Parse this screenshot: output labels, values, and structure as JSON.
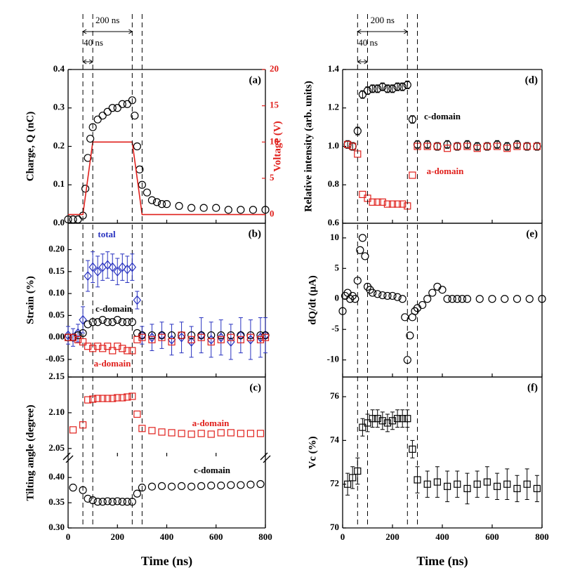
{
  "chart_data": [
    {
      "type": "scatter",
      "label": "(a)",
      "ylabel": "Charge, Q (nC)",
      "y2label": "Voltage (V)",
      "x": [
        0,
        20,
        40,
        60,
        70,
        80,
        90,
        100,
        120,
        140,
        160,
        180,
        200,
        220,
        240,
        260,
        270,
        280,
        290,
        300,
        320,
        340,
        360,
        380,
        400,
        450,
        500,
        550,
        600,
        650,
        700,
        750,
        800
      ],
      "xlim": [
        0,
        800
      ],
      "xticks": [
        0,
        200,
        400,
        600,
        800
      ],
      "ylim": [
        0,
        0.4
      ],
      "yticks": [
        {
          "value": 0,
          "label": "0.0"
        },
        0.1,
        0.2,
        0.3,
        0.4
      ],
      "y2lim": [
        -1.2,
        20
      ],
      "y2ticks": [
        0,
        5,
        10,
        15,
        20
      ],
      "series": [
        {
          "color": "#000000",
          "marker": "circle",
          "values": [
            0.01,
            0.01,
            0.01,
            0.02,
            0.09,
            0.17,
            0.22,
            0.25,
            0.27,
            0.28,
            0.29,
            0.3,
            0.3,
            0.31,
            0.31,
            0.32,
            0.28,
            0.2,
            0.14,
            0.1,
            0.08,
            0.06,
            0.055,
            0.05,
            0.05,
            0.045,
            0.04,
            0.04,
            0.04,
            0.035,
            0.035,
            0.035,
            0.035
          ]
        },
        {
          "color": "#e0201c",
          "mode": "line",
          "axis": "y2",
          "x": [
            0,
            60,
            100,
            260,
            300,
            800
          ],
          "values": [
            0,
            0,
            10,
            10,
            0,
            0
          ]
        }
      ],
      "markers": [
        60,
        100,
        260,
        300
      ],
      "annotations": [
        {
          "text": "200 ns",
          "from": 60,
          "to": 260
        },
        {
          "text": "40 ns",
          "from": 60,
          "to": 100
        }
      ]
    },
    {
      "type": "scatter",
      "label": "(b)",
      "ylabel": "Strain (%)",
      "x": [
        0,
        20,
        40,
        60,
        80,
        100,
        120,
        140,
        160,
        180,
        200,
        220,
        240,
        260,
        280,
        300,
        340,
        380,
        420,
        460,
        500,
        540,
        580,
        620,
        660,
        700,
        740,
        780,
        800
      ],
      "xlim": [
        0,
        800
      ],
      "xticks": [
        0,
        200,
        400,
        600,
        800
      ],
      "ylim": [
        -0.09,
        0.26
      ],
      "yticks": [
        -0.05,
        {
          "value": 0,
          "label": "0.00"
        },
        0.05,
        {
          "value": 0.1,
          "label": "0.10"
        },
        0.15,
        {
          "value": 0.2,
          "label": "0.20"
        }
      ],
      "series": [
        {
          "name": "total",
          "color": "#2832c0",
          "marker": "diamond",
          "values": [
            0.005,
            0,
            0.01,
            0.04,
            0.14,
            0.16,
            0.15,
            0.16,
            0.165,
            0.16,
            0.15,
            0.16,
            0.155,
            0.16,
            0.085,
            0.005,
            0,
            0.005,
            -0.005,
            0,
            -0.01,
            0.005,
            -0.005,
            0,
            -0.01,
            0.005,
            -0.005,
            0,
            0.005
          ],
          "errors": [
            0.02,
            0.02,
            0.02,
            0.03,
            0.035,
            0.035,
            0.035,
            0.03,
            0.03,
            0.03,
            0.03,
            0.03,
            0.03,
            0.03,
            0.02,
            0.02,
            0.03,
            0.03,
            0.035,
            0.035,
            0.035,
            0.04,
            0.04,
            0.04,
            0.04,
            0.04,
            0.045,
            0.045,
            0.04
          ]
        },
        {
          "name": "c-domain",
          "color": "#000000",
          "marker": "circle",
          "values": [
            0,
            0,
            0.005,
            0.01,
            0.03,
            0.035,
            0.035,
            0.04,
            0.035,
            0.035,
            0.04,
            0.035,
            0.035,
            0.035,
            0.01,
            0.005,
            0.005,
            0.005,
            0.005,
            0.005,
            0.005,
            0.005,
            0.005,
            0.005,
            0.005,
            0.005,
            0.005,
            0.005,
            0.005
          ]
        },
        {
          "name": "a-domain",
          "color": "#e0201c",
          "marker": "square",
          "values": [
            0,
            0,
            -0.005,
            -0.01,
            -0.02,
            -0.025,
            -0.02,
            -0.025,
            -0.02,
            -0.03,
            -0.02,
            -0.025,
            -0.03,
            -0.03,
            -0.005,
            0,
            -0.005,
            0,
            -0.01,
            0.005,
            -0.005,
            0,
            -0.01,
            -0.005,
            0,
            -0.005,
            0,
            -0.005,
            0
          ]
        }
      ]
    },
    {
      "type": "scatter",
      "label": "(c)",
      "ylabel": "Tilting angle (degree)",
      "x": [
        20,
        60,
        80,
        100,
        120,
        140,
        160,
        180,
        200,
        220,
        240,
        260,
        280,
        300,
        340,
        380,
        420,
        460,
        500,
        540,
        580,
        620,
        660,
        700,
        740,
        780
      ],
      "xlim": [
        0,
        800
      ],
      "xticks": [
        0,
        200,
        400,
        600,
        800
      ],
      "ylim": [
        2.039,
        2.15
      ],
      "yticks": [
        2.05,
        {
          "value": 2.1,
          "label": "2.10"
        },
        2.15
      ],
      "series": [
        {
          "name": "a-domain",
          "color": "#e0201c",
          "marker": "square",
          "values": [
            2.076,
            2.083,
            2.118,
            2.119,
            2.12,
            2.12,
            2.12,
            2.12,
            2.121,
            2.121,
            2.122,
            2.123,
            2.098,
            2.078,
            2.075,
            2.073,
            2.072,
            2.071,
            2.07,
            2.071,
            2.07,
            2.072,
            2.072,
            2.071,
            2.071,
            2.071
          ]
        }
      ]
    },
    {
      "type": "scatter",
      "x": [
        20,
        60,
        80,
        100,
        120,
        140,
        160,
        180,
        200,
        220,
        240,
        260,
        280,
        300,
        340,
        380,
        420,
        460,
        500,
        540,
        580,
        620,
        660,
        700,
        740,
        780
      ],
      "xlim": [
        0,
        800
      ],
      "xticks": [
        0,
        200,
        400,
        600,
        800
      ],
      "xlabel": "Time (ns)",
      "ylim": [
        0.3,
        0.442
      ],
      "yticks": [
        {
          "value": 0.3,
          "label": "0.30"
        },
        0.35,
        {
          "value": 0.4,
          "label": "0.40"
        }
      ],
      "series": [
        {
          "name": "c-domain",
          "color": "#000000",
          "marker": "circle",
          "values": [
            0.38,
            0.375,
            0.358,
            0.355,
            0.352,
            0.352,
            0.353,
            0.352,
            0.353,
            0.352,
            0.352,
            0.352,
            0.368,
            0.38,
            0.382,
            0.383,
            0.382,
            0.383,
            0.382,
            0.383,
            0.384,
            0.384,
            0.385,
            0.385,
            0.386,
            0.387
          ]
        }
      ]
    },
    {
      "type": "scatter",
      "label": "(d)",
      "ylabel": "Relative intensity (arb. units)",
      "x": [
        20,
        40,
        60,
        80,
        100,
        120,
        140,
        160,
        180,
        200,
        220,
        240,
        260,
        280,
        300,
        340,
        380,
        420,
        460,
        500,
        540,
        580,
        620,
        660,
        700,
        740,
        780
      ],
      "xlim": [
        0,
        800
      ],
      "xticks": [
        0,
        200,
        400,
        600,
        800
      ],
      "ylim": [
        0.6,
        1.4
      ],
      "yticks": [
        0.6,
        0.8,
        {
          "value": 1,
          "label": "1.0"
        },
        1.2,
        1.4
      ],
      "series": [
        {
          "name": "c-domain",
          "color": "#000000",
          "marker": "circle",
          "values": [
            1.01,
            1,
            1.08,
            1.27,
            1.29,
            1.3,
            1.3,
            1.31,
            1.3,
            1.3,
            1.31,
            1.31,
            1.32,
            1.14,
            1.01,
            1.01,
            1,
            1.01,
            1,
            1.01,
            1,
            1,
            1.01,
            1,
            1.01,
            1,
            1
          ],
          "errors": [
            0.02,
            0.02,
            0.02,
            0.02,
            0.02,
            0.02,
            0.02,
            0.02,
            0.02,
            0.02,
            0.02,
            0.02,
            0.02,
            0.02,
            0.02,
            0.02,
            0.02,
            0.02,
            0.02,
            0.02,
            0.02,
            0.02,
            0.02,
            0.02,
            0.02,
            0.02,
            0.02
          ]
        },
        {
          "name": "a-domain",
          "color": "#e0201c",
          "marker": "square",
          "values": [
            1.01,
            1,
            0.96,
            0.75,
            0.73,
            0.71,
            0.71,
            0.71,
            0.7,
            0.7,
            0.7,
            0.7,
            0.69,
            0.85,
            1,
            1,
            1,
            0.99,
            1,
            1,
            0.99,
            1,
            1,
            0.99,
            1,
            1,
            1
          ]
        }
      ],
      "markers": [
        60,
        100,
        260,
        300
      ],
      "annotations": [
        {
          "text": "200 ns",
          "from": 60,
          "to": 260
        },
        {
          "text": "40 ns",
          "from": 60,
          "to": 100
        }
      ]
    },
    {
      "type": "scatter",
      "label": "(e)",
      "ylabel": "dQ/dt (μA)",
      "x": [
        0,
        10,
        20,
        30,
        40,
        50,
        60,
        70,
        80,
        90,
        100,
        110,
        120,
        140,
        160,
        180,
        200,
        220,
        240,
        250,
        260,
        270,
        280,
        290,
        300,
        320,
        340,
        360,
        380,
        400,
        420,
        440,
        460,
        480,
        500,
        550,
        600,
        650,
        700,
        750,
        800
      ],
      "xlim": [
        0,
        800
      ],
      "xticks": [
        0,
        200,
        400,
        600,
        800
      ],
      "ylim": [
        -12.8,
        12.4
      ],
      "yticks": [
        -10,
        -5,
        0,
        5,
        10
      ],
      "series": [
        {
          "color": "#000000",
          "marker": "circle",
          "values": [
            -2,
            0.5,
            1,
            0,
            0.5,
            0,
            3,
            8,
            10,
            7,
            2,
            1.5,
            1,
            0.8,
            0.6,
            0.5,
            0.5,
            0.3,
            0,
            -3,
            -10,
            -6,
            -3,
            -2,
            -1.5,
            -1,
            0,
            1,
            2,
            1.5,
            0,
            0,
            0,
            0,
            0,
            0,
            0,
            0,
            0,
            0,
            0
          ]
        }
      ]
    },
    {
      "type": "scatter",
      "label": "(f)",
      "ylabel": "Vc (%)",
      "xlabel": "Time (ns)",
      "x": [
        20,
        40,
        60,
        80,
        100,
        120,
        140,
        160,
        180,
        200,
        220,
        240,
        260,
        280,
        300,
        340,
        380,
        420,
        460,
        500,
        540,
        580,
        620,
        660,
        700,
        740,
        780
      ],
      "xlim": [
        0,
        800
      ],
      "xticks": [
        0,
        200,
        400,
        600,
        800
      ],
      "ylim": [
        70,
        76.9
      ],
      "yticks": [
        70,
        72,
        74,
        76
      ],
      "series": [
        {
          "color": "#000000",
          "marker": "square",
          "values": [
            72,
            72.3,
            72.6,
            74.6,
            74.8,
            75,
            75,
            74.9,
            74.8,
            74.9,
            75,
            75,
            75,
            73.6,
            72.2,
            72,
            72.1,
            71.9,
            72,
            71.8,
            72,
            72.1,
            71.9,
            72,
            71.8,
            72,
            71.8
          ],
          "errors": [
            0.5,
            0.5,
            0.6,
            0.4,
            0.4,
            0.4,
            0.4,
            0.4,
            0.4,
            0.4,
            0.4,
            0.4,
            0.4,
            0.4,
            0.6,
            0.6,
            0.7,
            0.7,
            0.6,
            0.7,
            0.6,
            0.7,
            0.6,
            0.7,
            0.6,
            0.7,
            0.6
          ]
        }
      ]
    }
  ]
}
